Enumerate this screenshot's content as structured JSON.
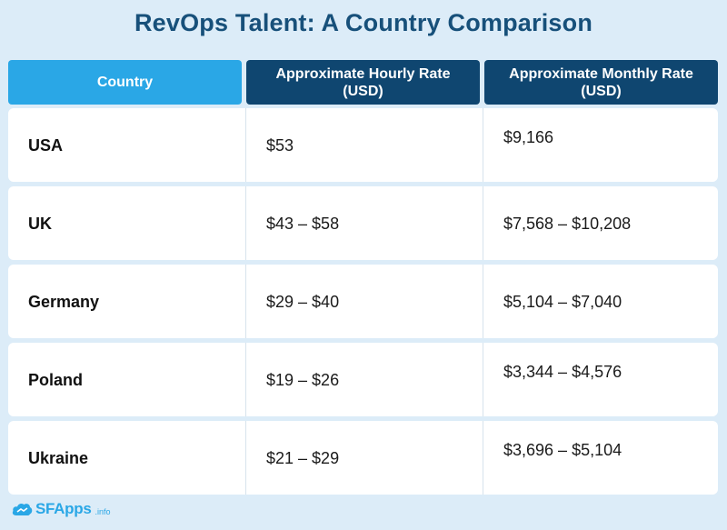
{
  "title": "RevOps Talent: A Country Comparison",
  "headers": {
    "country": "Country",
    "hourly": "Approximate Hourly Rate (USD)",
    "monthly": "Approximate Monthly Rate (USD)"
  },
  "rows": [
    {
      "country": "USA",
      "hourly": "$53",
      "monthly": "$9,166"
    },
    {
      "country": "UK",
      "hourly": "$43 – $58",
      "monthly": "$7,568 – $10,208"
    },
    {
      "country": "Germany",
      "hourly": "$29 – $40",
      "monthly": "$5,104 – $7,040"
    },
    {
      "country": "Poland",
      "hourly": "$19 – $26",
      "monthly": "$3,344 – $4,576"
    },
    {
      "country": "Ukraine",
      "hourly": "$21 – $29",
      "monthly": "$3,696 – $5,104"
    }
  ],
  "logo": {
    "name": "SFApps",
    "suffix": ".info",
    "icon": "cloud-icon"
  },
  "colors": {
    "background": "#dcecf8",
    "title": "#17507a",
    "header_light": "#2aa7e6",
    "header_dark": "#0f4670"
  }
}
